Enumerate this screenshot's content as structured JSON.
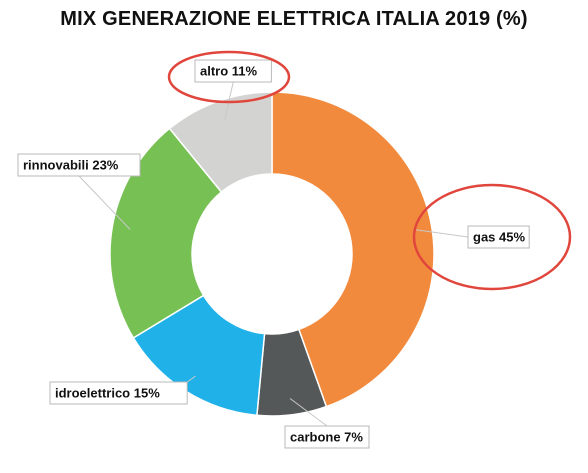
{
  "chart_data": {
    "type": "pie",
    "title": "MIX GENERAZIONE ELETTRICA ITALIA 2019 (%)",
    "donut": true,
    "slices": [
      {
        "label": "gas 45%",
        "value": 45,
        "color": "#f28a3e"
      },
      {
        "label": "carbone 7%",
        "value": 7,
        "color": "#555858"
      },
      {
        "label": "idroelettrico 15%",
        "value": 15,
        "color": "#1fb1e8"
      },
      {
        "label": "rinnovabili 23%",
        "value": 23,
        "color": "#76c054"
      },
      {
        "label": "altro 11%",
        "value": 11,
        "color": "#d3d4d2"
      }
    ],
    "highlighted": [
      "altro 11%",
      "gas 45%"
    ],
    "highlight_color": "#e0463c"
  }
}
